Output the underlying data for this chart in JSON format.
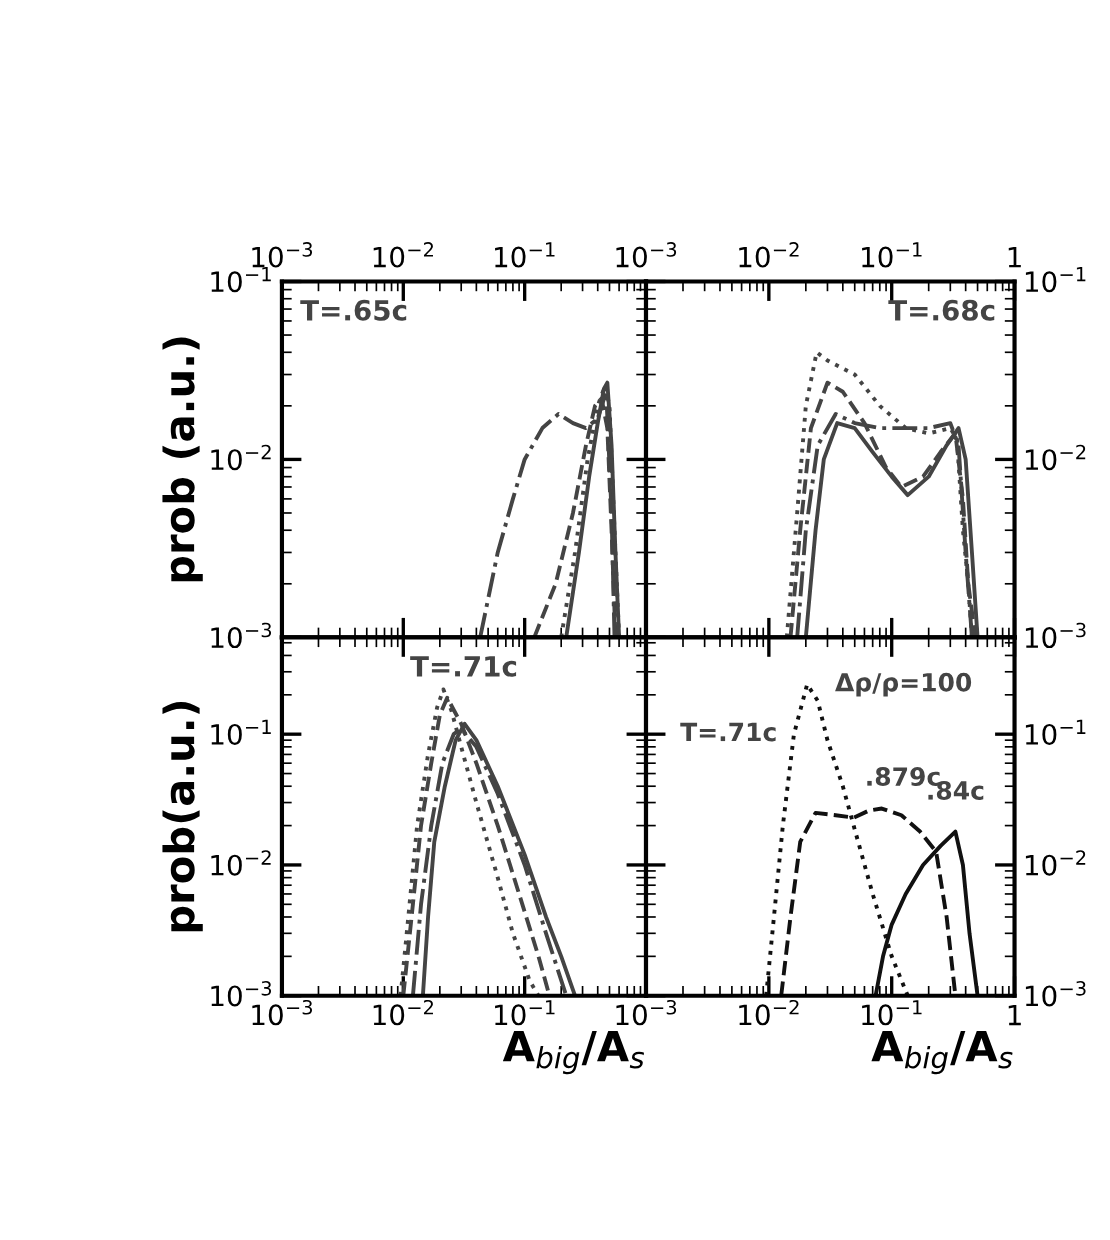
{
  "chart_data": [
    {
      "type": "line",
      "title": "T=.65c",
      "ylabel": "prob (a.u.)",
      "log": "xy",
      "color": "#444444",
      "xlim": [
        0.001,
        1
      ],
      "xticks": [
        {
          "value": 0.001,
          "label": "10$^{−3}$"
        },
        {
          "value": 0.01,
          "label": "10$^{−2}$"
        },
        {
          "value": 0.1,
          "label": "10$^{−1}$"
        }
      ],
      "ylim": [
        0.001,
        0.1
      ],
      "yticks": [
        {
          "value": 0.001,
          "label": "10$^{−3}$"
        },
        {
          "value": 0.01,
          "label": "10$^{−2}$"
        },
        {
          "value": 0.1,
          "label": "10$^{−1}$"
        }
      ],
      "series": [
        {
          "line_style": "dashdot",
          "x": [
            0.043,
            0.06,
            0.08,
            0.1,
            0.14,
            0.19,
            0.25,
            0.32,
            0.4,
            0.47,
            0.52,
            0.55
          ],
          "values": [
            0.001,
            0.003,
            0.006,
            0.01,
            0.015,
            0.018,
            0.016,
            0.015,
            0.017,
            0.024,
            0.005,
            0.001
          ]
        },
        {
          "line_style": "dashed",
          "x": [
            0.12,
            0.18,
            0.25,
            0.32,
            0.38,
            0.43,
            0.48,
            0.52,
            0.56
          ],
          "values": [
            0.001,
            0.002,
            0.005,
            0.012,
            0.02,
            0.022,
            0.015,
            0.004,
            0.001
          ]
        },
        {
          "line_style": "solid",
          "x": [
            0.22,
            0.28,
            0.34,
            0.4,
            0.45,
            0.48,
            0.52,
            0.56,
            0.6
          ],
          "values": [
            0.001,
            0.003,
            0.008,
            0.016,
            0.025,
            0.027,
            0.012,
            0.003,
            0.001
          ]
        },
        {
          "line_style": "dotted",
          "x": [
            0.2,
            0.26,
            0.33,
            0.4,
            0.46,
            0.5,
            0.55,
            0.6
          ],
          "values": [
            0.001,
            0.003,
            0.01,
            0.02,
            0.026,
            0.02,
            0.004,
            0.001
          ]
        }
      ]
    },
    {
      "type": "line",
      "title": "T=.68c",
      "log": "xy",
      "color": "#444444",
      "xlim": [
        0.001,
        1
      ],
      "xticks": [
        {
          "value": 0.001,
          "label": "10$^{−3}$"
        },
        {
          "value": 0.01,
          "label": "10$^{−2}$"
        },
        {
          "value": 0.1,
          "label": "10$^{−1}$"
        },
        1
      ],
      "ylim": [
        0.001,
        0.1
      ],
      "yticks": [
        {
          "value": 0.001,
          "label": "10$^{−3}$"
        },
        {
          "value": 0.01,
          "label": "10$^{−2}$"
        },
        {
          "value": 0.1,
          "label": "10$^{−1}$"
        }
      ],
      "series": [
        {
          "line_style": "dotted",
          "x": [
            0.014,
            0.017,
            0.02,
            0.0245,
            0.03,
            0.05,
            0.08,
            0.13,
            0.2,
            0.3,
            0.34,
            0.38,
            0.42,
            0.45
          ],
          "values": [
            0.001,
            0.005,
            0.02,
            0.04,
            0.036,
            0.03,
            0.02,
            0.015,
            0.014,
            0.015,
            0.013,
            0.004,
            0.002,
            0.001
          ]
        },
        {
          "line_style": "dashed",
          "x": [
            0.015,
            0.018,
            0.022,
            0.03,
            0.04,
            0.06,
            0.09,
            0.12,
            0.18,
            0.25,
            0.33,
            0.38,
            0.42,
            0.48
          ],
          "values": [
            0.001,
            0.004,
            0.015,
            0.027,
            0.024,
            0.016,
            0.009,
            0.007,
            0.008,
            0.011,
            0.014,
            0.006,
            0.002,
            0.001
          ]
        },
        {
          "line_style": "solid",
          "x": [
            0.02,
            0.024,
            0.028,
            0.036,
            0.05,
            0.07,
            0.1,
            0.135,
            0.2,
            0.28,
            0.35,
            0.4,
            0.45,
            0.5
          ],
          "values": [
            0.001,
            0.004,
            0.01,
            0.016,
            0.015,
            0.011,
            0.008,
            0.0063,
            0.008,
            0.012,
            0.015,
            0.01,
            0.003,
            0.001
          ]
        },
        {
          "line_style": "dashdot",
          "x": [
            0.017,
            0.02,
            0.025,
            0.035,
            0.05,
            0.08,
            0.12,
            0.2,
            0.3,
            0.35,
            0.4,
            0.45
          ],
          "values": [
            0.001,
            0.004,
            0.012,
            0.018,
            0.016,
            0.015,
            0.015,
            0.015,
            0.016,
            0.012,
            0.003,
            0.001
          ]
        }
      ]
    },
    {
      "type": "line",
      "title": "T=.71c",
      "ylabel": "prob(a.u.)",
      "xlabel": "A$_{big}$/A$_{s}$",
      "log": "xy",
      "color": "#444444",
      "xlim": [
        0.001,
        1
      ],
      "xticks": [
        {
          "value": 0.001,
          "label": "10$^{−3}$"
        },
        {
          "value": 0.01,
          "label": "10$^{−2}$"
        },
        {
          "value": 0.1,
          "label": "10$^{−1}$"
        }
      ],
      "ylim": [
        0.001,
        0.55
      ],
      "yticks": [
        {
          "value": 0.001,
          "label": "10$^{−3}$"
        },
        {
          "value": 0.01,
          "label": "10$^{−2}$"
        },
        {
          "value": 0.1,
          "label": "10$^{−1}$"
        }
      ],
      "series": [
        {
          "line_style": "dotted",
          "x": [
            0.0095,
            0.011,
            0.013,
            0.016,
            0.019,
            0.0214,
            0.025,
            0.03,
            0.04,
            0.06,
            0.08,
            0.11,
            0.13
          ],
          "values": [
            0.001,
            0.004,
            0.02,
            0.07,
            0.16,
            0.22,
            0.15,
            0.08,
            0.03,
            0.008,
            0.003,
            0.0013,
            0.001
          ]
        },
        {
          "line_style": "dashed",
          "x": [
            0.01,
            0.012,
            0.014,
            0.017,
            0.02,
            0.023,
            0.03,
            0.04,
            0.06,
            0.09,
            0.13,
            0.16
          ],
          "values": [
            0.001,
            0.005,
            0.02,
            0.06,
            0.14,
            0.19,
            0.12,
            0.06,
            0.02,
            0.006,
            0.002,
            0.001
          ]
        },
        {
          "line_style": "solid",
          "x": [
            0.0145,
            0.016,
            0.018,
            0.022,
            0.027,
            0.032,
            0.04,
            0.06,
            0.1,
            0.15,
            0.2,
            0.26
          ],
          "values": [
            0.001,
            0.004,
            0.015,
            0.04,
            0.09,
            0.12,
            0.09,
            0.04,
            0.012,
            0.004,
            0.002,
            0.001
          ]
        },
        {
          "line_style": "dashdot",
          "x": [
            0.012,
            0.014,
            0.017,
            0.021,
            0.026,
            0.03,
            0.04,
            0.06,
            0.1,
            0.15,
            0.22
          ],
          "values": [
            0.001,
            0.005,
            0.02,
            0.06,
            0.1,
            0.11,
            0.08,
            0.035,
            0.01,
            0.003,
            0.001
          ]
        }
      ]
    },
    {
      "type": "line",
      "xlabel": "A$_{big}$/A$_{s}$",
      "log": "xy",
      "color": "#111111",
      "xlim": [
        0.001,
        1
      ],
      "xticks": [
        {
          "value": 0.001,
          "label": "10$^{−3}$"
        },
        {
          "value": 0.01,
          "label": "10$^{−2}$"
        },
        {
          "value": 0.1,
          "label": "10$^{−1}$"
        },
        1
      ],
      "ylim": [
        0.001,
        0.55
      ],
      "yticks": [
        {
          "value": 0.001,
          "label": "10$^{−3}$"
        },
        {
          "value": 0.01,
          "label": "10$^{−2}$"
        },
        {
          "value": 0.1,
          "label": "10$^{−1}$"
        }
      ],
      "annotations": [
        {
          "text": "T=.71c",
          "x": 0.016,
          "y": 0.1
        },
        {
          "text": "Δρ/ρ=100",
          "x": 0.0205,
          "y": 0.24
        },
        {
          "text": ".879c",
          "x": 0.049,
          "y": 0.023
        },
        {
          "text": ".84c",
          "x": 0.33,
          "y": 0.018
        }
      ],
      "series": [
        {
          "line_style": "dotted",
          "x": [
            0.0095,
            0.011,
            0.013,
            0.016,
            0.0205,
            0.025,
            0.03,
            0.04,
            0.049,
            0.07,
            0.1,
            0.135
          ],
          "values": [
            0.001,
            0.004,
            0.02,
            0.1,
            0.24,
            0.18,
            0.09,
            0.04,
            0.02,
            0.006,
            0.002,
            0.001
          ]
        },
        {
          "line_style": "dashed",
          "x": [
            0.0126,
            0.015,
            0.018,
            0.024,
            0.035,
            0.049,
            0.065,
            0.083,
            0.12,
            0.17,
            0.23,
            0.28,
            0.33
          ],
          "values": [
            0.001,
            0.004,
            0.015,
            0.025,
            0.024,
            0.023,
            0.026,
            0.027,
            0.024,
            0.018,
            0.0126,
            0.004,
            0.001
          ]
        },
        {
          "line_style": "solid",
          "x": [
            0.074,
            0.085,
            0.1,
            0.13,
            0.18,
            0.25,
            0.33,
            0.38,
            0.43,
            0.5
          ],
          "values": [
            0.001,
            0.002,
            0.0035,
            0.006,
            0.01,
            0.014,
            0.018,
            0.01,
            0.003,
            0.001
          ]
        }
      ]
    }
  ]
}
